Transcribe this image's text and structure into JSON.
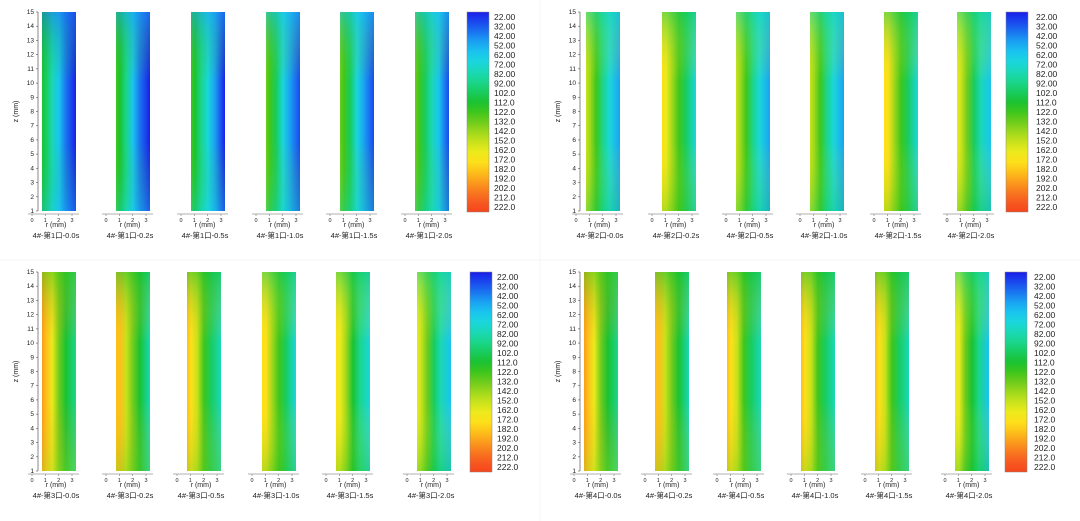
{
  "chart_data": {
    "type": "heatmap",
    "colorbar": {
      "ticks": [
        "22.00",
        "32.00",
        "42.00",
        "52.00",
        "62.00",
        "72.00",
        "82.00",
        "92.00",
        "102.0",
        "112.0",
        "122.0",
        "132.0",
        "142.0",
        "152.0",
        "162.0",
        "172.0",
        "182.0",
        "192.0",
        "202.0",
        "212.0",
        "222.0"
      ],
      "colors": [
        "#1a1ee8",
        "#1a48ee",
        "#1a74f0",
        "#1aa2f2",
        "#1ac4ef",
        "#1ad6dc",
        "#1ad8b6",
        "#1ad68c",
        "#18cc5e",
        "#1ac232",
        "#3ec61c",
        "#6ecc1c",
        "#9ed81c",
        "#c8e21c",
        "#ecea1c",
        "#fde01a",
        "#fdc01a",
        "#fb9c1c",
        "#f9781e",
        "#f75a20",
        "#f5441c"
      ]
    },
    "x_axis": {
      "label": "r (mm)",
      "ticks": [
        "0",
        "1",
        "2",
        "3"
      ],
      "range": [
        0,
        3.3
      ]
    },
    "y_axis": {
      "label": "z (mm)",
      "ticks": [
        "1",
        "2",
        "3",
        "4",
        "5",
        "6",
        "7",
        "8",
        "9",
        "10",
        "11",
        "12",
        "13",
        "14",
        "15"
      ],
      "range": [
        1,
        15
      ]
    },
    "panels": [
      {
        "name": "1",
        "labels": [
          "4#-第1口-0.0s",
          "4#-第1口-0.2s",
          "4#-第1口-0.5s",
          "4#-第1口-1.0s",
          "4#-第1口-1.5s",
          "4#-第1口-2.0s"
        ],
        "max_temp": [
          112,
          118,
          124,
          128,
          130,
          132
        ]
      },
      {
        "name": "2",
        "labels": [
          "4#-第2口-0.0s",
          "4#-第2口-0.2s",
          "4#-第2口-0.5s",
          "4#-第2口-1.0s",
          "4#-第2口-1.5s",
          "4#-第2口-2.0s"
        ],
        "max_temp": [
          150,
          172,
          150,
          150,
          175,
          160
        ]
      },
      {
        "name": "3",
        "labels": [
          "4#-第3口-0.0s",
          "4#-第3口-0.2s",
          "4#-第3口-0.5s",
          "4#-第3口-1.0s",
          "4#-第3口-1.5s",
          "4#-第3口-2.0s"
        ],
        "max_temp": [
          190,
          185,
          180,
          175,
          168,
          160
        ]
      },
      {
        "name": "4",
        "labels": [
          "4#-第4口-0.0s",
          "4#-第4口-0.2s",
          "4#-第4口-0.5s",
          "4#-第4口-1.0s",
          "4#-第4口-1.5s",
          "4#-第4口-2.0s"
        ],
        "max_temp": [
          190,
          185,
          180,
          180,
          178,
          165
        ]
      }
    ]
  }
}
